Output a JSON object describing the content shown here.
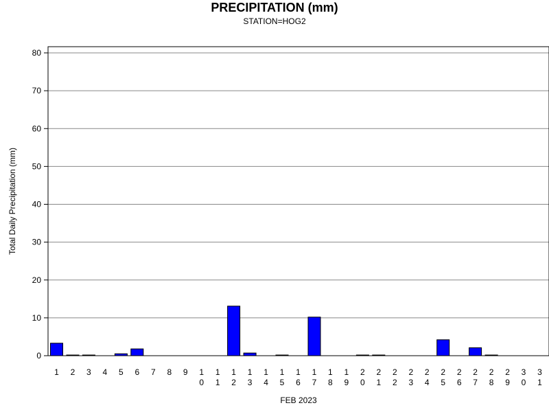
{
  "chart_data": {
    "type": "bar",
    "title": "PRECIPITATION (mm)",
    "subtitle": "STATION=HOG2",
    "xlabel": "FEB 2023",
    "ylabel": "Total Daily Precipitation (mm)",
    "ylim": [
      0,
      80
    ],
    "yticks": [
      0,
      10,
      20,
      30,
      40,
      50,
      60,
      70,
      80
    ],
    "grid": true,
    "bar_color": "#0000ff",
    "categories": [
      "1",
      "2",
      "3",
      "4",
      "5",
      "6",
      "7",
      "8",
      "9",
      "10",
      "11",
      "12",
      "13",
      "14",
      "15",
      "16",
      "17",
      "18",
      "19",
      "20",
      "21",
      "22",
      "23",
      "24",
      "25",
      "26",
      "27",
      "28",
      "29",
      "30",
      "31"
    ],
    "values": [
      3.3,
      0.1,
      0.1,
      null,
      0.5,
      1.8,
      null,
      null,
      null,
      null,
      null,
      13.1,
      0.7,
      null,
      0.1,
      null,
      10.2,
      null,
      null,
      0.1,
      0.1,
      null,
      null,
      null,
      4.2,
      null,
      2.1,
      0.1,
      null,
      null,
      null
    ]
  }
}
